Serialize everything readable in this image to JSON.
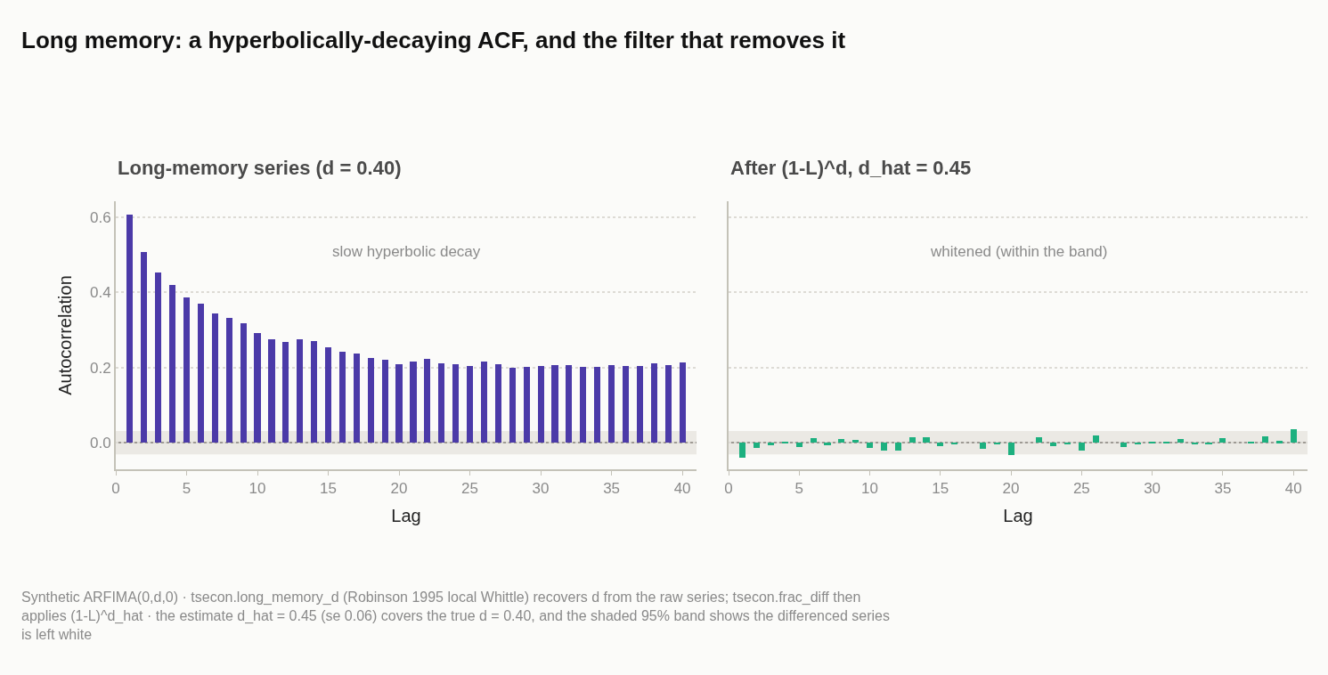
{
  "chart_data": [
    {
      "type": "bar",
      "title": "Long-memory series (d = 0.40)",
      "xlabel": "Lag",
      "ylabel": "Autocorrelation",
      "x": [
        1,
        2,
        3,
        4,
        5,
        6,
        7,
        8,
        9,
        10,
        11,
        12,
        13,
        14,
        15,
        16,
        17,
        18,
        19,
        20,
        21,
        22,
        23,
        24,
        25,
        26,
        27,
        28,
        29,
        30,
        31,
        32,
        33,
        34,
        35,
        36,
        37,
        38,
        39,
        40
      ],
      "values": [
        0.608,
        0.508,
        0.453,
        0.419,
        0.386,
        0.371,
        0.344,
        0.333,
        0.317,
        0.291,
        0.276,
        0.268,
        0.276,
        0.27,
        0.253,
        0.243,
        0.237,
        0.225,
        0.221,
        0.208,
        0.217,
        0.223,
        0.211,
        0.208,
        0.204,
        0.216,
        0.208,
        0.2,
        0.202,
        0.204,
        0.206,
        0.206,
        0.202,
        0.202,
        0.206,
        0.204,
        0.204,
        0.211,
        0.206,
        0.214
      ],
      "color": "#4b3aa8",
      "xlim": [
        0,
        41
      ],
      "xticks": [
        0,
        5,
        10,
        15,
        20,
        25,
        30,
        35,
        40
      ],
      "ylim": [
        -0.071,
        0.643
      ],
      "yticks": [
        {
          "value": 0,
          "label": "0.0"
        },
        0.2,
        0.4,
        0.6
      ],
      "grid": "y",
      "ref_lines": [
        {
          "axis": "y",
          "value": 0,
          "color": "#9e9a94"
        }
      ],
      "bands": [
        {
          "axis": "y",
          "from": -0.031,
          "to": 0.031,
          "color": "#ebe9e4"
        }
      ],
      "annotations": [
        "Long memory: a hyperbolically-decaying ACF, and the filter that removes it",
        "slow hyperbolic decay",
        "Synthetic ARFIMA(0,d,0) · tsecon.long_memory_d (Robinson 1995 local Whittle) recovers d from the raw series; tsecon.frac_diff then applies (1-L)^d_hat · the estimate d_hat = 0.45 (se 0.06) covers the true d = 0.40, and the shaded 95% band shows the differenced series is left white"
      ]
    },
    {
      "type": "bar",
      "title": "After (1-L)^d, d_hat = 0.45",
      "xlabel": "Lag",
      "x": [
        1,
        2,
        3,
        4,
        5,
        6,
        7,
        8,
        9,
        10,
        11,
        12,
        13,
        14,
        15,
        16,
        17,
        18,
        19,
        20,
        21,
        22,
        23,
        24,
        25,
        26,
        27,
        28,
        29,
        30,
        31,
        32,
        33,
        34,
        35,
        36,
        37,
        38,
        39,
        40
      ],
      "values": [
        -0.04,
        -0.014,
        -0.007,
        0.002,
        -0.011,
        0.011,
        -0.007,
        0.009,
        0.007,
        -0.014,
        -0.022,
        -0.022,
        0.014,
        0.014,
        -0.009,
        -0.005,
        0,
        -0.017,
        -0.005,
        -0.032,
        0,
        0.014,
        -0.009,
        -0.003,
        -0.02,
        0.019,
        0,
        -0.011,
        -0.005,
        0.002,
        0.002,
        0.009,
        -0.005,
        -0.003,
        0.011,
        0,
        0.002,
        0.016,
        0.004,
        0.035
      ],
      "color": "#1db07f",
      "xlim": [
        0,
        41
      ],
      "xticks": [
        0,
        5,
        10,
        15,
        20,
        25,
        30,
        35,
        40
      ],
      "ylim": [
        -0.071,
        0.643
      ],
      "yticks": [
        0,
        0.2,
        0.4,
        0.6
      ],
      "grid": "y",
      "tick_labels": "x",
      "ref_lines": [
        {
          "axis": "y",
          "value": 0,
          "color": "#9e9a94"
        }
      ],
      "bands": [
        {
          "axis": "y",
          "from": -0.031,
          "to": 0.031,
          "color": "#ebe9e4"
        }
      ],
      "annotations": [
        "whitened (within the band)"
      ]
    }
  ]
}
